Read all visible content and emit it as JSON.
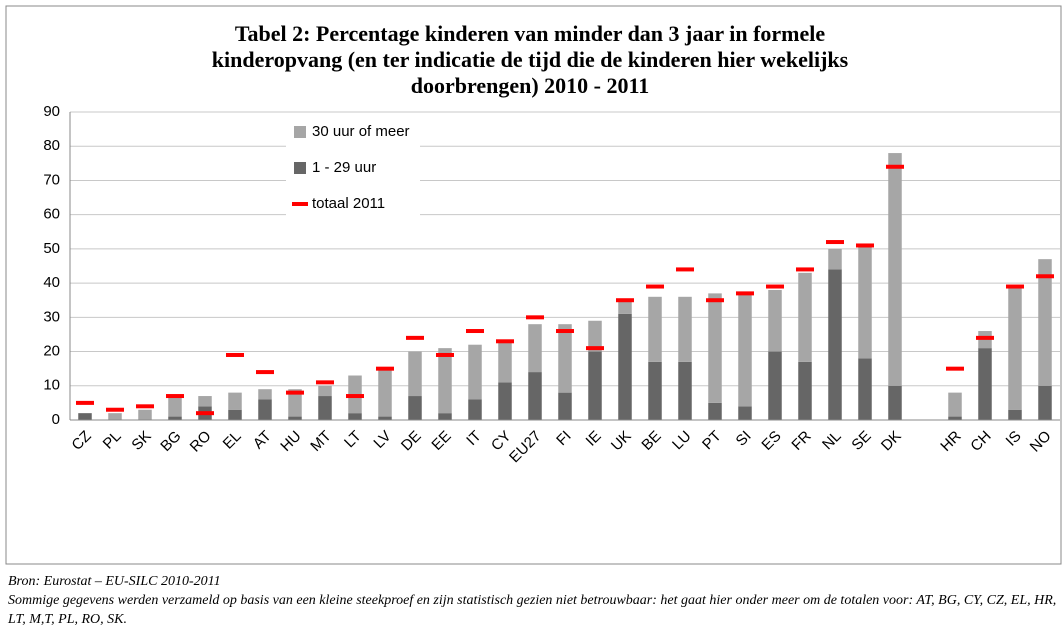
{
  "chart_data": {
    "type": "bar",
    "title_lines": [
      "Tabel 2: Percentage kinderen van minder dan 3 jaar in formele",
      "kinderopvang (en ter indicatie de tijd die de kinderen hier wekelijks",
      "doorbrengen) 2010 - 2011"
    ],
    "categories": [
      "CZ",
      "PL",
      "SK",
      "BG",
      "RO",
      "EL",
      "AT",
      "HU",
      "MT",
      "LT",
      "LV",
      "DE",
      "EE",
      "IT",
      "CY",
      "EU27",
      "FI",
      "IE",
      "UK",
      "BE",
      "LU",
      "PT",
      "SI",
      "ES",
      "FR",
      "NL",
      "SE",
      "DK",
      null,
      "HR",
      "CH",
      "IS",
      "NO"
    ],
    "series": [
      {
        "name": "1 - 29 uur",
        "color": "#666666",
        "values": [
          2,
          0,
          0,
          1,
          4,
          3,
          6,
          1,
          7,
          2,
          1,
          7,
          2,
          6,
          11,
          14,
          8,
          20,
          31,
          17,
          17,
          5,
          4,
          20,
          17,
          44,
          18,
          10,
          null,
          1,
          21,
          3,
          10
        ]
      },
      {
        "name": "30 uur of meer",
        "color": "#a6a6a6",
        "values": [
          0,
          2,
          3,
          6,
          3,
          5,
          3,
          8,
          3,
          11,
          14,
          13,
          19,
          16,
          12,
          14,
          20,
          9,
          4,
          19,
          19,
          32,
          33,
          18,
          26,
          6,
          33,
          68,
          null,
          7,
          5,
          36,
          37
        ]
      },
      {
        "name": "totaal 2011",
        "color": "#ff0000",
        "values": [
          5,
          3,
          4,
          7,
          2,
          19,
          14,
          8,
          11,
          7,
          15,
          24,
          19,
          26,
          23,
          30,
          26,
          21,
          35,
          39,
          44,
          35,
          37,
          39,
          44,
          52,
          51,
          74,
          null,
          15,
          24,
          39,
          42
        ]
      }
    ],
    "ylim": [
      0,
      90
    ],
    "yticks": [
      0,
      10,
      20,
      30,
      40,
      50,
      60,
      70,
      80,
      90
    ],
    "grid": true,
    "source": "Bron: Eurostat – EU-SILC 2010-2011",
    "note": "Sommige gegevens werden verzameld op basis van een kleine steekproef en zijn statistisch gezien niet betrouwbaar: het gaat hier onder meer om de totalen voor: AT, BG, CY, CZ, EL, HR, LT, M,T, PL, RO, SK."
  }
}
